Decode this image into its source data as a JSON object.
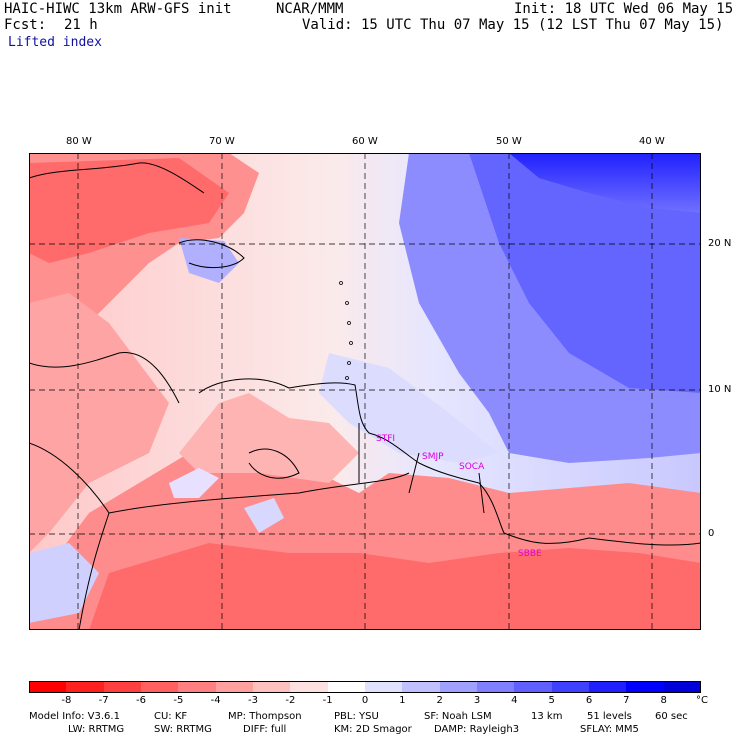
{
  "header": {
    "model": "HAIC-HIWC 13km ARW-GFS init",
    "agency": "NCAR/MMM",
    "init": "Init: 18 UTC Wed 06 May 15",
    "fcst_label": "Fcst:",
    "fcst_value": "21 h",
    "valid": "Valid: 15 UTC Thu 07 May 15 (12 LST Thu 07 May 15)",
    "field": "Lifted index"
  },
  "map": {
    "lon_labels": [
      "80 W",
      "70 W",
      "60 W",
      "50 W",
      "40 W"
    ],
    "lat_labels": [
      "20 N",
      "10 N",
      "0"
    ],
    "stations": [
      "STFI",
      "SMJP",
      "SOCA",
      "SBBE"
    ]
  },
  "colorbar": {
    "ticks": [
      "-8",
      "-7",
      "-6",
      "-5",
      "-4",
      "-3",
      "-2",
      "-1",
      "0",
      "1",
      "2",
      "3",
      "4",
      "5",
      "6",
      "7",
      "8"
    ],
    "unit": "°C",
    "colors": [
      "#ff0000",
      "#ff2020",
      "#ff4040",
      "#ff6060",
      "#ff8080",
      "#ffa0a0",
      "#ffc0c0",
      "#ffe0e0",
      "#ffffff",
      "#e0e0ff",
      "#c0c0ff",
      "#a0a0ff",
      "#8080ff",
      "#6060ff",
      "#4040ff",
      "#2020ff",
      "#0000ff"
    ]
  },
  "footer": {
    "line1": [
      {
        "key": "model_info",
        "text": "Model Info: V3.6.1"
      },
      {
        "key": "cu",
        "text": "CU: KF"
      },
      {
        "key": "mp",
        "text": "MP: Thompson"
      },
      {
        "key": "pbl",
        "text": "PBL: YSU"
      },
      {
        "key": "sf",
        "text": "SF: Noah LSM"
      },
      {
        "key": "res",
        "text": "13 km"
      },
      {
        "key": "levels",
        "text": "51 levels"
      },
      {
        "key": "dt",
        "text": "60 sec"
      }
    ],
    "line2": [
      {
        "key": "lw",
        "text": "LW: RRTMG"
      },
      {
        "key": "sw",
        "text": "SW: RRTMG"
      },
      {
        "key": "diff",
        "text": "DIFF: full"
      },
      {
        "key": "km",
        "text": "KM: 2D Smagor"
      },
      {
        "key": "damp",
        "text": "DAMP: Rayleigh3"
      },
      {
        "key": "sflay",
        "text": "SFLAY: MM5"
      }
    ]
  }
}
